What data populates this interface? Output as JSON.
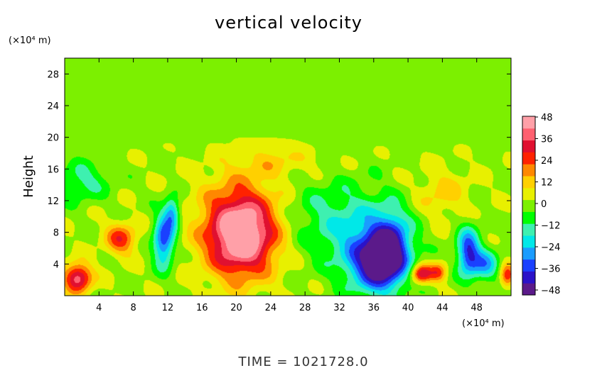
{
  "chart_data": {
    "type": "heatmap",
    "title": "vertical velocity",
    "xlabel": "",
    "ylabel": "Height",
    "x_unit": "(×10⁴ m)",
    "y_unit": "(×10⁴ m)",
    "xlim": [
      0,
      52
    ],
    "ylim": [
      0,
      30
    ],
    "x_ticks": [
      4,
      8,
      12,
      16,
      20,
      24,
      28,
      32,
      36,
      40,
      44,
      48
    ],
    "y_ticks": [
      4,
      8,
      12,
      16,
      20,
      24,
      28
    ],
    "colorbar": {
      "min": -48,
      "max": 48,
      "ticks": [
        "48",
        "36",
        "24",
        "12",
        "0",
        "−12",
        "−24",
        "−36",
        "−48"
      ],
      "colors": [
        "#5b1a8a",
        "#2b12c8",
        "#1a40ff",
        "#1a9cff",
        "#00e8e8",
        "#3ef0b0",
        "#00ff00",
        "#7cf000",
        "#e8f000",
        "#ffd000",
        "#ff8800",
        "#ff2200",
        "#e01030",
        "#ff6070",
        "#ffa0a8"
      ]
    },
    "background_value": 2,
    "features": [
      {
        "x": 1.5,
        "y": 2.3,
        "value": 38,
        "rx": 1.6,
        "ry": 1.8
      },
      {
        "x": 6.5,
        "y": 7.2,
        "value": 24,
        "rx": 1.8,
        "ry": 2.0
      },
      {
        "x": 20.5,
        "y": 7.5,
        "value": 42,
        "rx": 3.8,
        "ry": 5.0
      },
      {
        "x": 20.5,
        "y": 9.5,
        "value": 16,
        "rx": 5.0,
        "ry": 6.0
      },
      {
        "x": 11.5,
        "y": 7.0,
        "value": -36,
        "rx": 1.2,
        "ry": 3.2
      },
      {
        "x": 12.5,
        "y": 10.5,
        "value": -26,
        "rx": 0.9,
        "ry": 2.0
      },
      {
        "x": 36.5,
        "y": 4.0,
        "value": -40,
        "rx": 3.0,
        "ry": 3.5
      },
      {
        "x": 38.0,
        "y": 6.5,
        "value": -30,
        "rx": 2.2,
        "ry": 4.0
      },
      {
        "x": 35.0,
        "y": 7.0,
        "value": -18,
        "rx": 4.5,
        "ry": 5.5
      },
      {
        "x": 41.5,
        "y": 2.8,
        "value": 34,
        "rx": 1.2,
        "ry": 1.2
      },
      {
        "x": 43.5,
        "y": 3.0,
        "value": 22,
        "rx": 1.0,
        "ry": 1.2
      },
      {
        "x": 47.0,
        "y": 5.5,
        "value": -38,
        "rx": 1.3,
        "ry": 3.0
      },
      {
        "x": 49.0,
        "y": 4.0,
        "value": -24,
        "rx": 1.5,
        "ry": 2.0
      },
      {
        "x": 2.0,
        "y": 14.5,
        "value": -14,
        "rx": 3.0,
        "ry": 2.5
      },
      {
        "x": 30.0,
        "y": 10.0,
        "value": -10,
        "rx": 5.0,
        "ry": 5.0
      },
      {
        "x": 44.0,
        "y": 13.0,
        "value": 10,
        "rx": 3.0,
        "ry": 3.0
      },
      {
        "x": 51.5,
        "y": 2.5,
        "value": 24,
        "rx": 0.8,
        "ry": 1.5
      },
      {
        "x": 25.0,
        "y": 17.0,
        "value": 8,
        "rx": 5.0,
        "ry": 2.0
      }
    ],
    "grid": false,
    "legend_position": "right"
  },
  "footer": {
    "time_label": "TIME = 1021728.0"
  }
}
